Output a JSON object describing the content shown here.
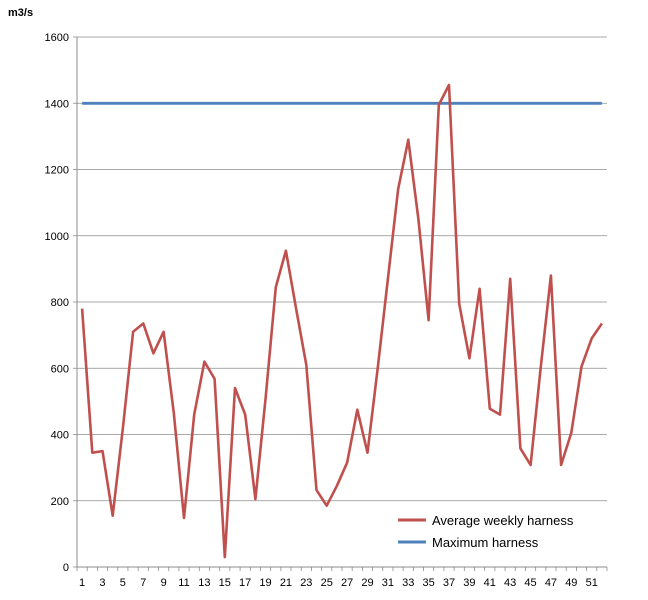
{
  "chart_data": {
    "type": "line",
    "ylabel": "m3/s",
    "xlabel": "",
    "ylim": [
      0,
      1600
    ],
    "y_ticks": [
      0,
      200,
      400,
      600,
      800,
      1000,
      1200,
      1400,
      1600
    ],
    "x_range": [
      1,
      52
    ],
    "x_tick_labels": [
      1,
      3,
      5,
      7,
      9,
      11,
      13,
      15,
      17,
      19,
      21,
      23,
      25,
      27,
      29,
      31,
      33,
      35,
      37,
      39,
      41,
      43,
      45,
      47,
      49,
      51
    ],
    "grid": true,
    "legend_position": "bottom-right",
    "series": [
      {
        "name": "Average weekly harness",
        "color": "#C0504D",
        "x": [
          1,
          2,
          3,
          4,
          5,
          6,
          7,
          8,
          9,
          10,
          11,
          12,
          13,
          14,
          15,
          16,
          17,
          18,
          19,
          20,
          21,
          22,
          23,
          24,
          25,
          26,
          27,
          28,
          29,
          30,
          31,
          32,
          33,
          34,
          35,
          36,
          37,
          38,
          39,
          40,
          41,
          42,
          43,
          44,
          45,
          46,
          47,
          48,
          49,
          50,
          51,
          52
        ],
        "values": [
          780,
          345,
          350,
          155,
          420,
          710,
          735,
          645,
          710,
          465,
          148,
          460,
          620,
          568,
          30,
          540,
          460,
          205,
          510,
          845,
          955,
          780,
          610,
          232,
          185,
          245,
          315,
          475,
          345,
          600,
          870,
          1140,
          1290,
          1050,
          745,
          1395,
          1455,
          795,
          630,
          840,
          478,
          460,
          870,
          358,
          308,
          605,
          880,
          308,
          405,
          605,
          690,
          735
        ]
      },
      {
        "name": "Maximum harness",
        "color": "#4F81BD",
        "x": [
          1,
          52
        ],
        "values": [
          1400,
          1400
        ]
      }
    ]
  }
}
